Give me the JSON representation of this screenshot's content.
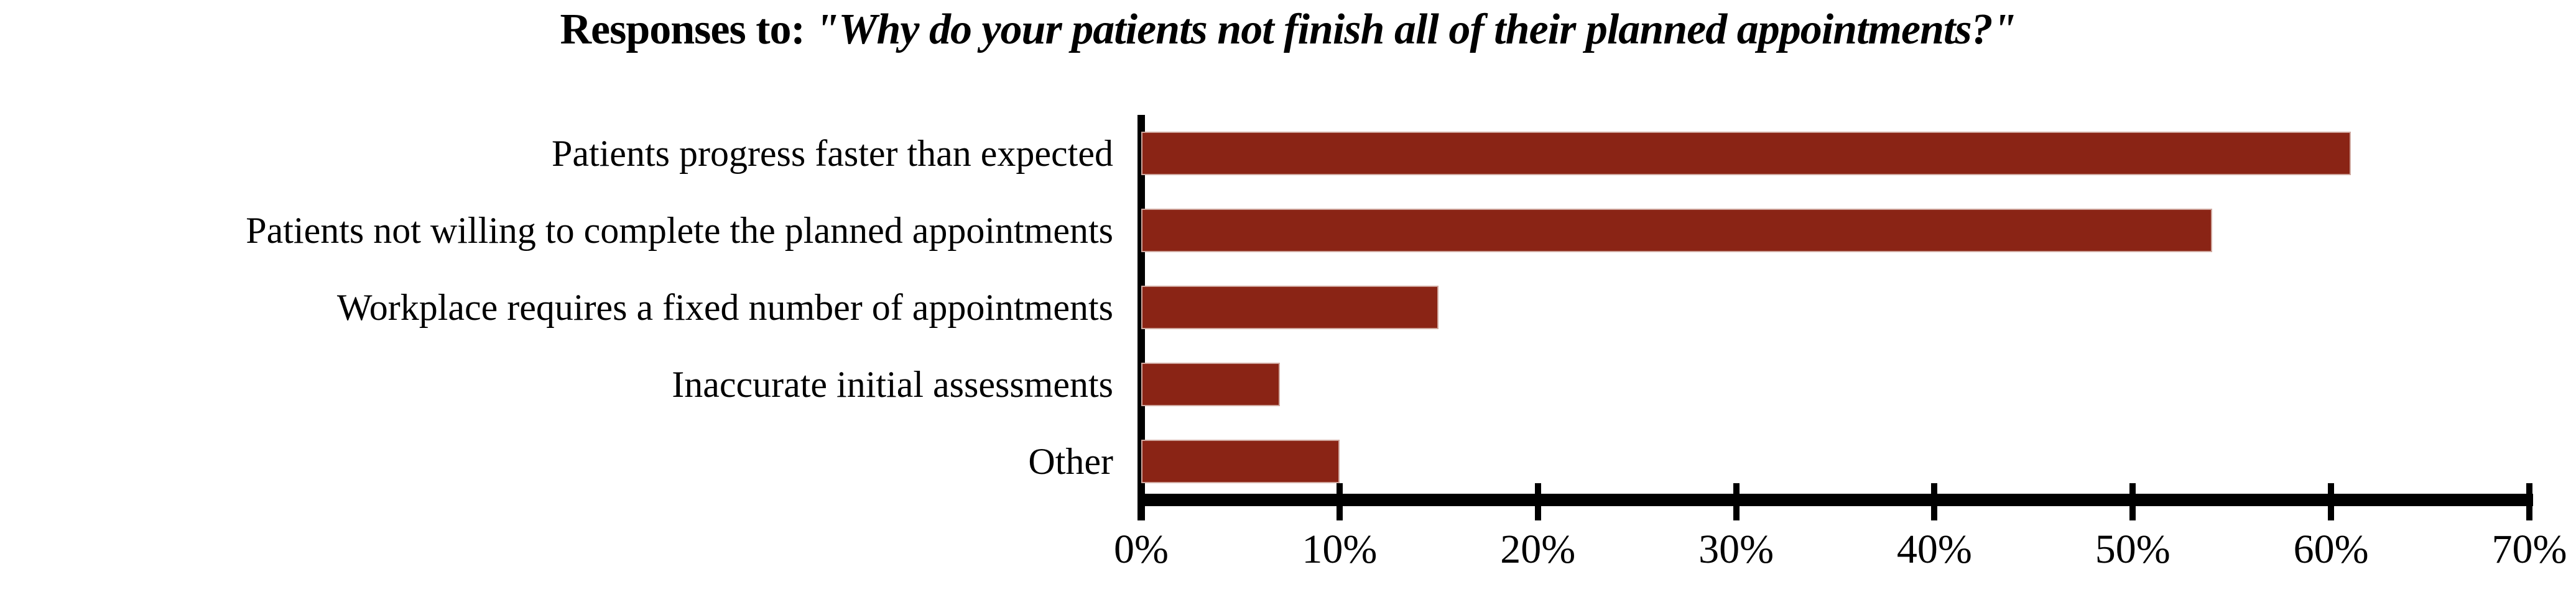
{
  "title": {
    "prefix": "Responses to: ",
    "question": "\"Why do your patients not finish all of their planned appointments?\""
  },
  "chart_data": {
    "type": "bar",
    "orientation": "horizontal",
    "title": "Responses to: \"Why do your patients not finish all of their planned appointments?\"",
    "categories": [
      "Patients progress faster than expected",
      "Patients not willing to complete the planned appointments",
      "Workplace requires a fixed number of appointments",
      "Inaccurate initial assessments",
      "Other"
    ],
    "values": [
      61,
      54,
      15,
      7,
      10
    ],
    "value_unit": "%",
    "xlabel": "",
    "ylabel": "",
    "xlim": [
      0,
      70
    ],
    "xtick_step": 10,
    "xtick_labels": [
      "0%",
      "10%",
      "20%",
      "30%",
      "40%",
      "50%",
      "60%",
      "70%"
    ],
    "grid": false,
    "legend": false,
    "bar_color": "#8A2415",
    "axis_color": "#000000",
    "text_color": "#000000",
    "background_color": "#ffffff"
  }
}
